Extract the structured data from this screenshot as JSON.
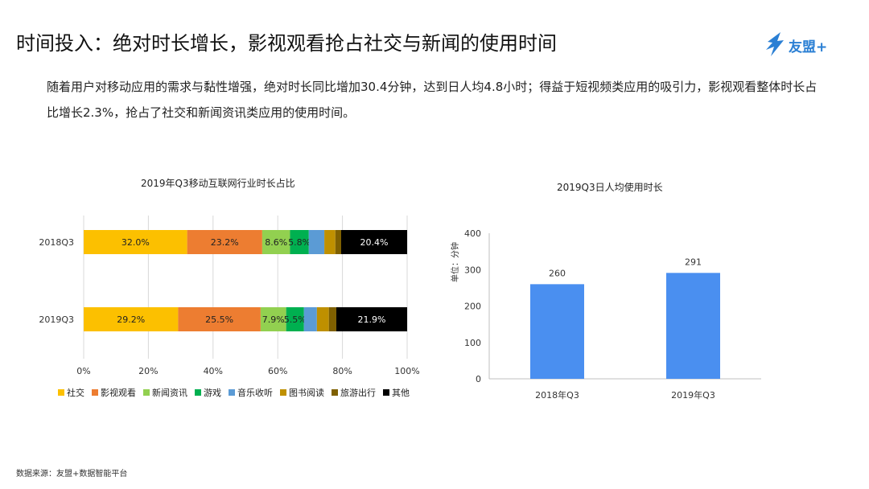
{
  "page": {
    "title": "时间投入：绝对时长增长，影视观看抢占社交与新闻的使用时间",
    "logo_text": "友盟+",
    "intro": "随着用户对移动应用的需求与黏性增强，绝对时长同比增加30.4分钟，达到日人均4.8小时；得益于短视频类应用的吸引力，影视观看整体时长占比增长2.3%，抢占了社交和新闻资讯类应用的使用时间。",
    "source": "数据来源：友盟+数据智能平台",
    "logo_color": "#2a7fd4"
  },
  "chart_data": [
    {
      "type": "bar",
      "orientation": "horizontal",
      "stacked": true,
      "percent": true,
      "title": "2019年Q3移动互联网行业时长占比",
      "categories": [
        "2018Q3",
        "2019Q3"
      ],
      "xlim": [
        0,
        100
      ],
      "xticks": [
        "0%",
        "20%",
        "40%",
        "60%",
        "80%",
        "100%"
      ],
      "grid": true,
      "legend_position": "bottom",
      "series": [
        {
          "name": "社交",
          "color": "#fcc000",
          "values": [
            32.0,
            29.2
          ],
          "labels": [
            "32.0%",
            "29.2%"
          ]
        },
        {
          "name": "影视观看",
          "color": "#ed7d31",
          "values": [
            23.2,
            25.5
          ],
          "labels": [
            "23.2%",
            "25.5%"
          ]
        },
        {
          "name": "新闻资讯",
          "color": "#92d050",
          "values": [
            8.6,
            7.9
          ],
          "labels": [
            "8.6%",
            "7.9%"
          ]
        },
        {
          "name": "游戏",
          "color": "#00b050",
          "values": [
            5.8,
            5.5
          ],
          "labels": [
            "5.8%",
            "5.5%"
          ]
        },
        {
          "name": "音乐收听",
          "color": "#5b9bd5",
          "values": [
            4.8,
            4.0
          ],
          "labels": [
            "",
            ""
          ]
        },
        {
          "name": "图书阅读",
          "color": "#bf9000",
          "values": [
            3.4,
            3.7
          ],
          "labels": [
            "",
            ""
          ]
        },
        {
          "name": "旅游出行",
          "color": "#7f6000",
          "values": [
            1.8,
            2.3
          ],
          "labels": [
            "",
            ""
          ]
        },
        {
          "name": "其他",
          "color": "#000000",
          "values": [
            20.4,
            21.9
          ],
          "labels": [
            "20.4%",
            "21.9%"
          ]
        }
      ]
    },
    {
      "type": "bar",
      "title": "2019Q3日人均使用时长",
      "categories": [
        "2018年Q3",
        "2019年Q3"
      ],
      "values": [
        260,
        291
      ],
      "value_labels": [
        "260",
        "291"
      ],
      "ylabel": "单位：分钟",
      "ylim": [
        0,
        400
      ],
      "yticks": [
        "0",
        "100",
        "200",
        "300",
        "400"
      ],
      "color": "#4a8ff0",
      "grid": false
    }
  ]
}
